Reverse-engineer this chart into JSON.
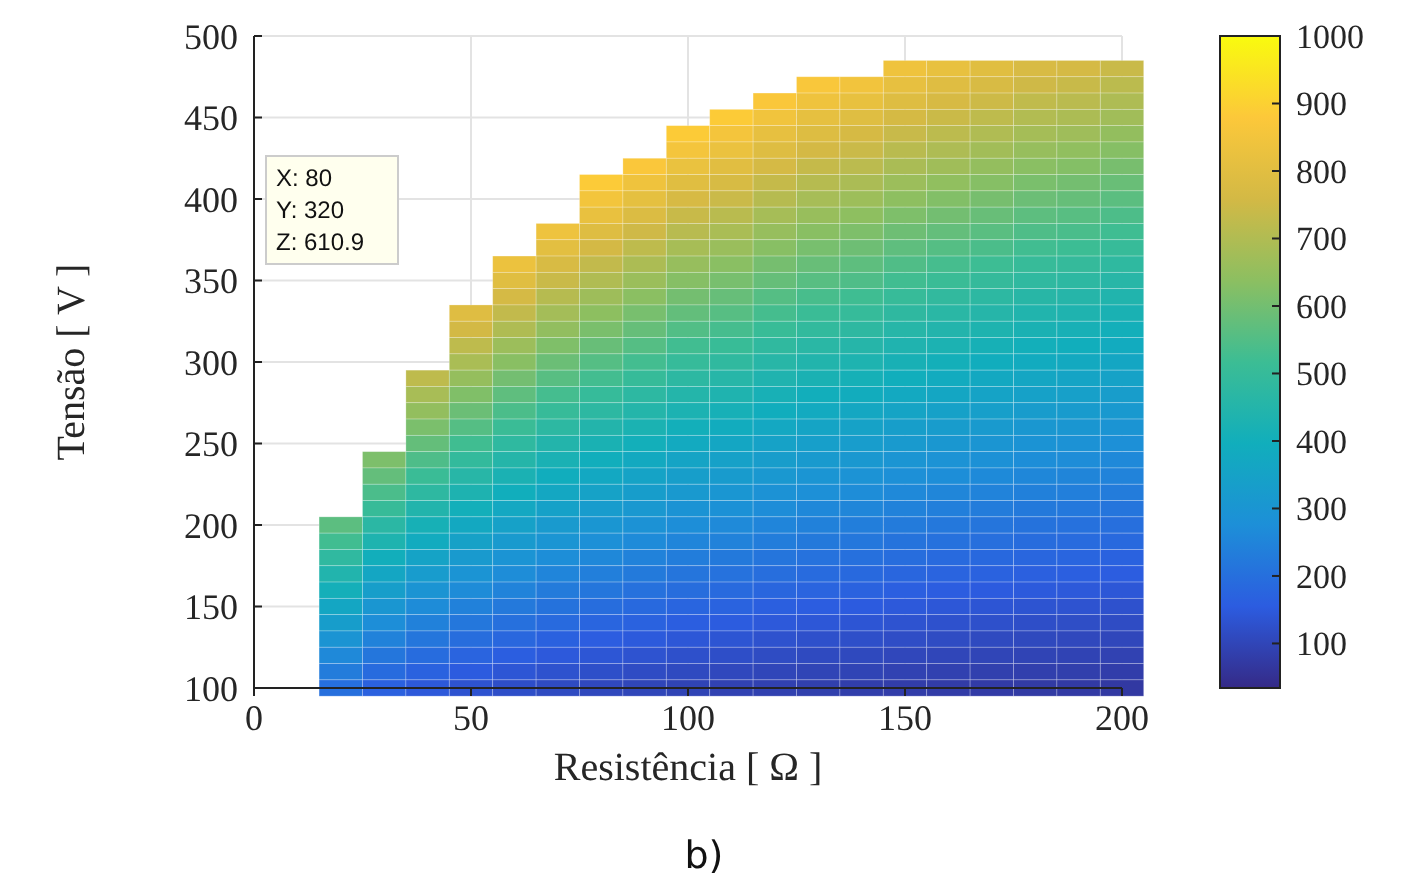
{
  "chart_data": {
    "type": "heatmap",
    "xlabel": "Resistência [ Ω ]",
    "ylabel": "Tensão [ V ]",
    "x": [
      20,
      30,
      40,
      50,
      60,
      70,
      80,
      90,
      100,
      110,
      120,
      130,
      140,
      150,
      160,
      170,
      180,
      190,
      200
    ],
    "y": [
      480,
      470,
      460,
      450,
      440,
      430,
      420,
      410,
      400,
      390,
      380,
      370,
      360,
      350,
      340,
      330,
      320,
      310,
      300,
      290,
      280,
      270,
      260,
      250,
      240,
      230,
      220,
      210,
      200,
      190,
      180,
      170,
      160,
      150,
      140,
      130,
      120,
      110,
      100
    ],
    "cells": [
      [
        null,
        null,
        null,
        null,
        null,
        null,
        null,
        null,
        null,
        null,
        null,
        null,
        null,
        842,
        819,
        797,
        774,
        763,
        741
      ],
      [
        null,
        null,
        null,
        null,
        null,
        null,
        null,
        null,
        null,
        null,
        null,
        870,
        849,
        816,
        794,
        772,
        751,
        740,
        718
      ],
      [
        null,
        null,
        null,
        null,
        null,
        null,
        null,
        null,
        null,
        null,
        874,
        842,
        821,
        790,
        769,
        748,
        727,
        716,
        695
      ],
      [
        null,
        null,
        null,
        null,
        null,
        null,
        null,
        null,
        null,
        887,
        846,
        815,
        795,
        764,
        744,
        723,
        703,
        693,
        673
      ],
      [
        null,
        null,
        null,
        null,
        null,
        null,
        null,
        null,
        887,
        857,
        818,
        788,
        768,
        739,
        719,
        699,
        680,
        670,
        650
      ],
      [
        null,
        null,
        null,
        null,
        null,
        null,
        null,
        null,
        857,
        828,
        790,
        762,
        743,
        714,
        695,
        676,
        657,
        647,
        628
      ],
      [
        null,
        null,
        null,
        null,
        null,
        null,
        null,
        873,
        827,
        800,
        763,
        735,
        717,
        689,
        671,
        652,
        634,
        625,
        607
      ],
      [
        null,
        null,
        null,
        null,
        null,
        null,
        886,
        842,
        797,
        771,
        735,
        709,
        691,
        665,
        647,
        629,
        611,
        602,
        585
      ],
      [
        null,
        null,
        null,
        null,
        null,
        null,
        854,
        811,
        769,
        743,
        709,
        683,
        666,
        641,
        623,
        606,
        589,
        581,
        564
      ],
      [
        null,
        null,
        null,
        null,
        null,
        null,
        822,
        781,
        740,
        715,
        682,
        658,
        641,
        617,
        600,
        584,
        567,
        559,
        543
      ],
      [
        null,
        null,
        null,
        null,
        null,
        838,
        791,
        751,
        712,
        688,
        657,
        633,
        617,
        593,
        577,
        562,
        546,
        538,
        522
      ],
      [
        null,
        null,
        null,
        null,
        null,
        806,
        760,
        722,
        684,
        661,
        631,
        608,
        593,
        570,
        555,
        540,
        524,
        517,
        502
      ],
      [
        null,
        null,
        null,
        null,
        831,
        773,
        729,
        693,
        656,
        634,
        605,
        583,
        569,
        547,
        532,
        518,
        503,
        496,
        481
      ],
      [
        null,
        null,
        null,
        null,
        797,
        741,
        699,
        664,
        629,
        608,
        580,
        559,
        545,
        524,
        510,
        496,
        482,
        475,
        461
      ],
      [
        null,
        null,
        null,
        null,
        763,
        709,
        669,
        636,
        602,
        582,
        555,
        535,
        522,
        502,
        488,
        475,
        462,
        455,
        442
      ],
      [
        null,
        null,
        null,
        794,
        730,
        678,
        640,
        608,
        576,
        557,
        531,
        512,
        499,
        480,
        467,
        454,
        442,
        435,
        422
      ],
      [
        null,
        null,
        null,
        758,
        697,
        648,
        611,
        580,
        550,
        532,
        507,
        489,
        477,
        458,
        446,
        434,
        422,
        415,
        403
      ],
      [
        null,
        null,
        null,
        723,
        665,
        618,
        583,
        554,
        525,
        507,
        484,
        466,
        455,
        437,
        426,
        414,
        402,
        396,
        385
      ],
      [
        null,
        null,
        null,
        688,
        633,
        588,
        555,
        527,
        500,
        483,
        461,
        444,
        433,
        416,
        405,
        394,
        383,
        377,
        366
      ],
      [
        null,
        null,
        722,
        653,
        601,
        559,
        527,
        501,
        474,
        458,
        437,
        422,
        411,
        395,
        385,
        374,
        364,
        358,
        348
      ],
      [
        null,
        null,
        685,
        620,
        570,
        530,
        500,
        475,
        450,
        435,
        415,
        400,
        390,
        375,
        365,
        355,
        345,
        340,
        330
      ],
      [
        null,
        null,
        649,
        588,
        540,
        502,
        474,
        450,
        427,
        412,
        393,
        379,
        370,
        356,
        346,
        337,
        327,
        322,
        313
      ],
      [
        null,
        null,
        612,
        554,
        510,
        474,
        447,
        425,
        402,
        389,
        371,
        358,
        349,
        335,
        326,
        317,
        308,
        304,
        295
      ],
      [
        null,
        null,
        578,
        523,
        481,
        447,
        422,
        401,
        380,
        367,
        350,
        338,
        329,
        317,
        308,
        300,
        291,
        287,
        279
      ],
      [
        null,
        615,
        544,
        492,
        453,
        421,
        397,
        377,
        357,
        345,
        330,
        318,
        310,
        298,
        290,
        282,
        274,
        270,
        262
      ],
      [
        null,
        577,
        510,
        461,
        424,
        394,
        372,
        353,
        335,
        324,
        309,
        298,
        290,
        279,
        272,
        264,
        257,
        253,
        246
      ],
      [
        null,
        539,
        477,
        432,
        397,
        369,
        348,
        331,
        313,
        303,
        289,
        278,
        271,
        261,
        254,
        247,
        240,
        237,
        230
      ],
      [
        null,
        504,
        445,
        403,
        371,
        345,
        325,
        309,
        293,
        283,
        270,
        260,
        254,
        244,
        237,
        231,
        224,
        221,
        215
      ],
      [
        565,
        468,
        414,
        374,
        344,
        320,
        302,
        287,
        272,
        263,
        251,
        242,
        236,
        227,
        220,
        214,
        208,
        205,
        199
      ],
      [
        524,
        434,
        384,
        347,
        319,
        297,
        280,
        266,
        252,
        244,
        232,
        224,
        218,
        210,
        204,
        199,
        193,
        190,
        185
      ],
      [
        482,
        400,
        353,
        320,
        294,
        273,
        258,
        245,
        232,
        224,
        214,
        206,
        201,
        194,
        188,
        183,
        178,
        175,
        170
      ],
      [
        443,
        367,
        325,
        294,
        270,
        251,
        237,
        225,
        213,
        206,
        197,
        190,
        185,
        178,
        173,
        168,
        164,
        161,
        156
      ],
      [
        404,
        335,
        296,
        268,
        246,
        229,
        216,
        205,
        194,
        188,
        179,
        173,
        168,
        162,
        158,
        153,
        149,
        147,
        143
      ],
      [
        367,
        304,
        269,
        243,
        223,
        208,
        196,
        186,
        176,
        171,
        163,
        157,
        153,
        147,
        143,
        139,
        135,
        133,
        129
      ],
      [
        331,
        274,
        242,
        219,
        202,
        188,
        177,
        168,
        159,
        154,
        147,
        142,
        138,
        133,
        129,
        126,
        122,
        120,
        117
      ],
      [
        295,
        245,
        216,
        196,
        180,
        167,
        158,
        150,
        142,
        137,
        131,
        126,
        123,
        119,
        115,
        112,
        109,
        107,
        104
      ],
      [
        262,
        217,
        192,
        174,
        160,
        148,
        140,
        133,
        126,
        122,
        116,
        112,
        109,
        105,
        102,
        99,
        97,
        95,
        92
      ],
      [
        230,
        191,
        169,
        153,
        140,
        130,
        123,
        117,
        111,
        107,
        102,
        98,
        96,
        92,
        90,
        87,
        85,
        84,
        81
      ],
      [
        200,
        166,
        147,
        133,
        122,
        113,
        107,
        102,
        96,
        93,
        89,
        86,
        83,
        80,
        78,
        76,
        74,
        73,
        71
      ]
    ],
    "xlim": [
      0,
      200
    ],
    "xticks": [
      0,
      50,
      100,
      150,
      200
    ],
    "ylim": [
      100,
      500
    ],
    "yticks": [
      100,
      150,
      200,
      250,
      300,
      350,
      400,
      450,
      500
    ],
    "clim": [
      34,
      1000
    ],
    "cticks": [
      100,
      200,
      300,
      400,
      500,
      600,
      700,
      800,
      900,
      1000
    ],
    "grid": true,
    "annotations": [
      "X: 80\nY: 320\nZ: 610.9",
      "b)"
    ]
  }
}
